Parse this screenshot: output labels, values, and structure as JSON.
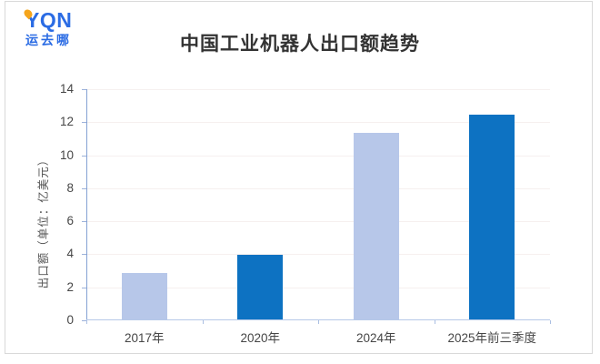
{
  "logo": {
    "text": "YQN",
    "subtext": "运去哪",
    "blue": "#2b6ce4",
    "yellow": "#f5a51d"
  },
  "title": "中国工业机器人出口额趋势",
  "chart_data": {
    "type": "bar",
    "title": "中国工业机器人出口额趋势",
    "categories": [
      "2017年",
      "2020年",
      "2024年",
      "2025年前三季度"
    ],
    "values": [
      2.8,
      3.9,
      11.3,
      12.4
    ],
    "bar_colors": [
      "#b7c7e9",
      "#0d72c2",
      "#b7c7e9",
      "#0d72c2"
    ],
    "xlabel": "",
    "ylabel": "出口额（单位：亿美元）",
    "ylim": [
      0,
      14
    ],
    "ytick_step": 2,
    "yticks": [
      0,
      2,
      4,
      6,
      8,
      10,
      12,
      14
    ],
    "grid": true,
    "legend": "none"
  }
}
